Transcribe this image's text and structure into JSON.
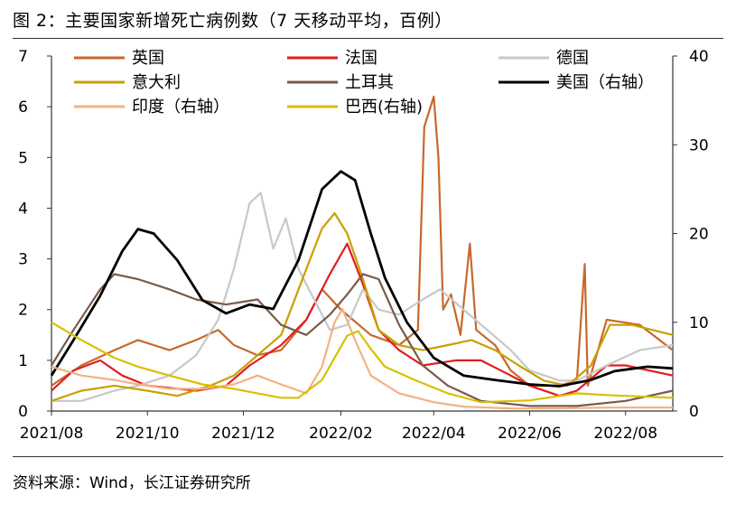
{
  "title": "图 2：主要国家新增死亡病例数（7 天移动平均，百例）",
  "source": "资料来源：Wind，长江证券研究所",
  "chart_data": {
    "type": "line",
    "x_start": "2021-08-01",
    "x_end": "2022-08-31",
    "x_ticks": [
      {
        "date": "2021-08-01",
        "label": "2021/08"
      },
      {
        "date": "2021-10-01",
        "label": "2021/10"
      },
      {
        "date": "2021-12-01",
        "label": "2021/12"
      },
      {
        "date": "2022-02-01",
        "label": "2022/02"
      },
      {
        "date": "2022-04-01",
        "label": "2022/04"
      },
      {
        "date": "2022-06-01",
        "label": "2022/06"
      },
      {
        "date": "2022-08-01",
        "label": "2022/08"
      }
    ],
    "y_left": {
      "min": 0,
      "max": 7,
      "ticks": [
        0,
        1,
        2,
        3,
        4,
        5,
        6,
        7
      ]
    },
    "y_right": {
      "min": 0,
      "max": 40,
      "ticks": [
        0,
        10,
        20,
        30,
        40
      ]
    },
    "grid": false,
    "legend_placement": "top",
    "series": [
      {
        "name": "英国",
        "color": "#C8682C",
        "axis": "left",
        "points": [
          [
            "2021-08-01",
            0.5
          ],
          [
            "2021-08-20",
            0.9
          ],
          [
            "2021-09-10",
            1.2
          ],
          [
            "2021-09-25",
            1.4
          ],
          [
            "2021-10-15",
            1.2
          ],
          [
            "2021-11-01",
            1.4
          ],
          [
            "2021-11-15",
            1.6
          ],
          [
            "2021-11-25",
            1.3
          ],
          [
            "2021-12-10",
            1.1
          ],
          [
            "2021-12-25",
            1.2
          ],
          [
            "2022-01-10",
            1.8
          ],
          [
            "2022-01-20",
            2.4
          ],
          [
            "2022-02-01",
            2.0
          ],
          [
            "2022-02-20",
            1.5
          ],
          [
            "2022-03-10",
            1.3
          ],
          [
            "2022-03-22",
            1.6
          ],
          [
            "2022-03-26",
            5.6
          ],
          [
            "2022-04-01",
            6.2
          ],
          [
            "2022-04-04",
            5.0
          ],
          [
            "2022-04-07",
            2.0
          ],
          [
            "2022-04-12",
            2.3
          ],
          [
            "2022-04-18",
            1.5
          ],
          [
            "2022-04-24",
            3.3
          ],
          [
            "2022-04-28",
            1.6
          ],
          [
            "2022-05-10",
            1.3
          ],
          [
            "2022-05-20",
            0.8
          ],
          [
            "2022-06-01",
            0.5
          ],
          [
            "2022-06-20",
            0.5
          ],
          [
            "2022-07-01",
            0.6
          ],
          [
            "2022-07-06",
            2.9
          ],
          [
            "2022-07-08",
            0.5
          ],
          [
            "2022-07-20",
            1.8
          ],
          [
            "2022-08-10",
            1.7
          ],
          [
            "2022-08-31",
            1.2
          ]
        ]
      },
      {
        "name": "法国",
        "color": "#E01E1E",
        "axis": "left",
        "points": [
          [
            "2021-08-01",
            0.4
          ],
          [
            "2021-08-15",
            0.8
          ],
          [
            "2021-09-01",
            1.0
          ],
          [
            "2021-09-15",
            0.7
          ],
          [
            "2021-10-01",
            0.5
          ],
          [
            "2021-11-01",
            0.4
          ],
          [
            "2021-11-20",
            0.5
          ],
          [
            "2021-12-05",
            0.9
          ],
          [
            "2021-12-25",
            1.3
          ],
          [
            "2022-01-10",
            1.8
          ],
          [
            "2022-01-25",
            2.7
          ],
          [
            "2022-02-05",
            3.3
          ],
          [
            "2022-02-15",
            2.5
          ],
          [
            "2022-02-25",
            1.6
          ],
          [
            "2022-03-10",
            1.2
          ],
          [
            "2022-03-25",
            0.9
          ],
          [
            "2022-04-15",
            1.0
          ],
          [
            "2022-05-01",
            1.0
          ],
          [
            "2022-05-20",
            0.7
          ],
          [
            "2022-06-01",
            0.5
          ],
          [
            "2022-06-20",
            0.3
          ],
          [
            "2022-07-01",
            0.4
          ],
          [
            "2022-07-20",
            0.9
          ],
          [
            "2022-08-01",
            0.9
          ],
          [
            "2022-08-31",
            0.7
          ]
        ]
      },
      {
        "name": "德国",
        "color": "#C8C8C8",
        "axis": "left",
        "points": [
          [
            "2021-08-01",
            0.2
          ],
          [
            "2021-08-20",
            0.2
          ],
          [
            "2021-09-10",
            0.4
          ],
          [
            "2021-09-25",
            0.5
          ],
          [
            "2021-10-15",
            0.7
          ],
          [
            "2021-11-01",
            1.1
          ],
          [
            "2021-11-15",
            1.8
          ],
          [
            "2021-11-25",
            2.8
          ],
          [
            "2021-12-05",
            4.1
          ],
          [
            "2021-12-12",
            4.3
          ],
          [
            "2021-12-20",
            3.2
          ],
          [
            "2021-12-28",
            3.8
          ],
          [
            "2022-01-05",
            2.8
          ],
          [
            "2022-01-15",
            2.2
          ],
          [
            "2022-01-25",
            1.6
          ],
          [
            "2022-02-05",
            1.7
          ],
          [
            "2022-02-15",
            2.4
          ],
          [
            "2022-02-25",
            2.0
          ],
          [
            "2022-03-10",
            1.9
          ],
          [
            "2022-03-25",
            2.2
          ],
          [
            "2022-04-05",
            2.4
          ],
          [
            "2022-04-20",
            2.0
          ],
          [
            "2022-05-05",
            1.6
          ],
          [
            "2022-05-20",
            1.2
          ],
          [
            "2022-06-01",
            0.8
          ],
          [
            "2022-06-20",
            0.6
          ],
          [
            "2022-07-01",
            0.6
          ],
          [
            "2022-07-20",
            0.9
          ],
          [
            "2022-08-10",
            1.2
          ],
          [
            "2022-08-31",
            1.3
          ]
        ]
      },
      {
        "name": "意大利",
        "color": "#C8A000",
        "axis": "left",
        "points": [
          [
            "2021-08-01",
            0.2
          ],
          [
            "2021-08-20",
            0.4
          ],
          [
            "2021-09-10",
            0.5
          ],
          [
            "2021-10-01",
            0.4
          ],
          [
            "2021-10-20",
            0.3
          ],
          [
            "2021-11-10",
            0.5
          ],
          [
            "2021-11-25",
            0.7
          ],
          [
            "2021-12-10",
            1.1
          ],
          [
            "2021-12-25",
            1.5
          ],
          [
            "2022-01-10",
            2.8
          ],
          [
            "2022-01-20",
            3.6
          ],
          [
            "2022-01-28",
            3.9
          ],
          [
            "2022-02-05",
            3.5
          ],
          [
            "2022-02-15",
            2.6
          ],
          [
            "2022-02-25",
            1.6
          ],
          [
            "2022-03-10",
            1.3
          ],
          [
            "2022-03-25",
            1.2
          ],
          [
            "2022-04-10",
            1.3
          ],
          [
            "2022-04-25",
            1.4
          ],
          [
            "2022-05-10",
            1.2
          ],
          [
            "2022-05-25",
            0.9
          ],
          [
            "2022-06-10",
            0.6
          ],
          [
            "2022-06-25",
            0.5
          ],
          [
            "2022-07-10",
            0.9
          ],
          [
            "2022-07-22",
            1.7
          ],
          [
            "2022-08-05",
            1.7
          ],
          [
            "2022-08-31",
            1.5
          ]
        ]
      },
      {
        "name": "土耳其",
        "color": "#7A5A4A",
        "axis": "left",
        "points": [
          [
            "2021-08-01",
            0.9
          ],
          [
            "2021-08-15",
            1.6
          ],
          [
            "2021-09-01",
            2.4
          ],
          [
            "2021-09-10",
            2.7
          ],
          [
            "2021-09-25",
            2.6
          ],
          [
            "2021-10-15",
            2.4
          ],
          [
            "2021-11-01",
            2.2
          ],
          [
            "2021-11-20",
            2.1
          ],
          [
            "2021-12-10",
            2.2
          ],
          [
            "2021-12-25",
            1.7
          ],
          [
            "2022-01-10",
            1.5
          ],
          [
            "2022-01-25",
            1.9
          ],
          [
            "2022-02-05",
            2.3
          ],
          [
            "2022-02-15",
            2.7
          ],
          [
            "2022-02-25",
            2.6
          ],
          [
            "2022-03-10",
            1.7
          ],
          [
            "2022-03-25",
            0.9
          ],
          [
            "2022-04-10",
            0.5
          ],
          [
            "2022-05-01",
            0.2
          ],
          [
            "2022-06-01",
            0.1
          ],
          [
            "2022-07-01",
            0.1
          ],
          [
            "2022-08-01",
            0.2
          ],
          [
            "2022-08-31",
            0.4
          ]
        ]
      },
      {
        "name": "美国（右轴）",
        "color": "#000000",
        "axis": "right",
        "points": [
          [
            "2021-08-01",
            4
          ],
          [
            "2021-08-15",
            8
          ],
          [
            "2021-09-01",
            13
          ],
          [
            "2021-09-15",
            18
          ],
          [
            "2021-09-25",
            20.5
          ],
          [
            "2021-10-05",
            20
          ],
          [
            "2021-10-20",
            17
          ],
          [
            "2021-11-05",
            12.5
          ],
          [
            "2021-11-20",
            11
          ],
          [
            "2021-12-05",
            12
          ],
          [
            "2021-12-20",
            11.5
          ],
          [
            "2022-01-05",
            17
          ],
          [
            "2022-01-20",
            25
          ],
          [
            "2022-02-01",
            27
          ],
          [
            "2022-02-10",
            26
          ],
          [
            "2022-02-20",
            20
          ],
          [
            "2022-03-01",
            15
          ],
          [
            "2022-03-15",
            10
          ],
          [
            "2022-04-01",
            6
          ],
          [
            "2022-04-20",
            4
          ],
          [
            "2022-05-10",
            3.5
          ],
          [
            "2022-06-01",
            3
          ],
          [
            "2022-06-20",
            2.8
          ],
          [
            "2022-07-10",
            3.5
          ],
          [
            "2022-07-25",
            4.5
          ],
          [
            "2022-08-15",
            5
          ],
          [
            "2022-08-31",
            4.8
          ]
        ]
      },
      {
        "name": "印度（右轴）",
        "color": "#F4B183",
        "axis": "right",
        "points": [
          [
            "2021-08-01",
            5
          ],
          [
            "2021-08-20",
            4
          ],
          [
            "2021-09-10",
            3.5
          ],
          [
            "2021-09-25",
            3
          ],
          [
            "2021-10-15",
            2.5
          ],
          [
            "2021-11-05",
            2.5
          ],
          [
            "2021-11-25",
            3
          ],
          [
            "2021-12-10",
            4
          ],
          [
            "2021-12-25",
            3
          ],
          [
            "2022-01-10",
            2
          ],
          [
            "2022-01-20",
            5
          ],
          [
            "2022-01-28",
            10
          ],
          [
            "2022-02-02",
            11.5
          ],
          [
            "2022-02-10",
            8
          ],
          [
            "2022-02-20",
            4
          ],
          [
            "2022-03-10",
            2
          ],
          [
            "2022-04-01",
            1
          ],
          [
            "2022-04-20",
            0.5
          ],
          [
            "2022-05-20",
            0.3
          ],
          [
            "2022-06-20",
            0.3
          ],
          [
            "2022-07-20",
            0.4
          ],
          [
            "2022-08-31",
            0.4
          ]
        ]
      },
      {
        "name": "巴西(右轴)",
        "color": "#D8C000",
        "axis": "right",
        "points": [
          [
            "2021-08-01",
            10
          ],
          [
            "2021-08-20",
            8
          ],
          [
            "2021-09-10",
            6
          ],
          [
            "2021-09-25",
            5
          ],
          [
            "2021-10-15",
            4
          ],
          [
            "2021-11-05",
            3
          ],
          [
            "2021-11-25",
            2.5
          ],
          [
            "2021-12-10",
            2
          ],
          [
            "2021-12-25",
            1.5
          ],
          [
            "2022-01-05",
            1.5
          ],
          [
            "2022-01-20",
            3.5
          ],
          [
            "2022-01-28",
            6
          ],
          [
            "2022-02-05",
            8.5
          ],
          [
            "2022-02-12",
            9
          ],
          [
            "2022-02-20",
            7
          ],
          [
            "2022-03-01",
            5
          ],
          [
            "2022-03-20",
            3.5
          ],
          [
            "2022-04-10",
            2
          ],
          [
            "2022-05-01",
            1
          ],
          [
            "2022-06-01",
            1.2
          ],
          [
            "2022-07-01",
            2
          ],
          [
            "2022-07-20",
            1.8
          ],
          [
            "2022-08-31",
            1.5
          ]
        ]
      }
    ]
  }
}
